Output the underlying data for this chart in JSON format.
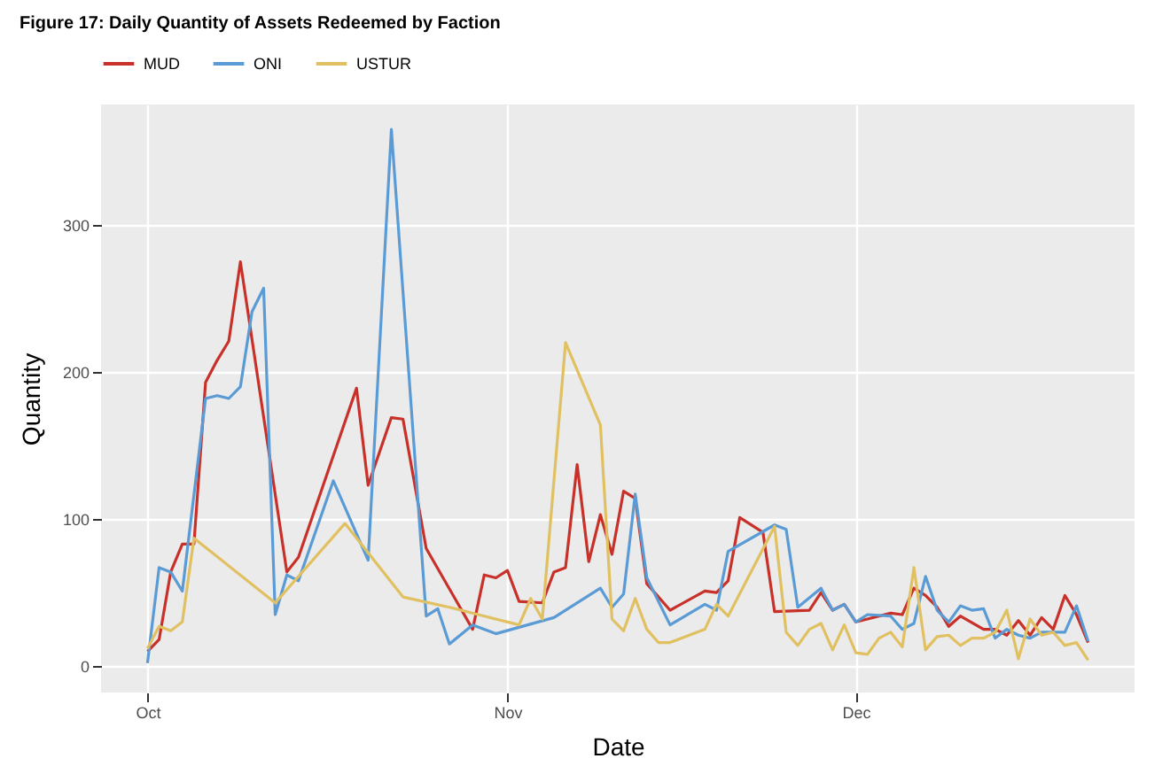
{
  "chart_data": {
    "type": "line",
    "title": "Figure 17: Daily Quantity of Assets Redeemed by Faction",
    "xlabel": "Date",
    "ylabel": "Quantity",
    "xlim": [
      "--09-27",
      "--12-25"
    ],
    "xticks": [
      {
        "value": "--10-01",
        "label": "Oct"
      },
      {
        "value": "--11-01",
        "label": "Nov"
      },
      {
        "value": "--12-01",
        "label": "Dec"
      }
    ],
    "ylim": [
      -18,
      382
    ],
    "yticks": [
      0,
      100,
      200,
      300
    ],
    "grid": true,
    "legend": "top left",
    "line_style": "solid",
    "series": [
      {
        "name": "MUD",
        "color": "#c8312a",
        "x": [
          "--10-01",
          "--10-02",
          "--10-03",
          "--10-04",
          "--10-05",
          "--10-06",
          "--10-07",
          "--10-08",
          "--10-09",
          "--10-13",
          "--10-14",
          "--10-19",
          "--10-20",
          "--10-22",
          "--10-23",
          "--10-25",
          "--10-29",
          "--10-30",
          "--10-31",
          "--11-01",
          "--11-02",
          "--11-04",
          "--11-05",
          "--11-06",
          "--11-07",
          "--11-08",
          "--11-09",
          "--11-10",
          "--11-11",
          "--11-12",
          "--11-13",
          "--11-15",
          "--11-18",
          "--11-19",
          "--11-20",
          "--11-21",
          "--11-23",
          "--11-24",
          "--11-27",
          "--11-28",
          "--11-29",
          "--11-30",
          "--12-01",
          "--12-02",
          "--12-04",
          "--12-05",
          "--12-06",
          "--12-07",
          "--12-08",
          "--12-09",
          "--12-10",
          "--12-12",
          "--12-13",
          "--12-14",
          "--12-15",
          "--12-16",
          "--12-17",
          "--12-18",
          "--12-19",
          "--12-20",
          "--12-21"
        ],
        "values": [
          10,
          18,
          64,
          83,
          83,
          193,
          208,
          221,
          275,
          64,
          74,
          189,
          123,
          169,
          168,
          80,
          25,
          62,
          60,
          65,
          44,
          43,
          64,
          67,
          137,
          71,
          103,
          76,
          119,
          114,
          56,
          38,
          51,
          50,
          58,
          101,
          91,
          37,
          38,
          50,
          38,
          42,
          30,
          32,
          36,
          35,
          53,
          48,
          40,
          27,
          34,
          25,
          25,
          21,
          31,
          21,
          33,
          25,
          48,
          35,
          16
        ]
      },
      {
        "name": "ONI",
        "color": "#5b9bd5",
        "x": [
          "--10-01",
          "--10-02",
          "--10-03",
          "--10-04",
          "--10-06",
          "--10-07",
          "--10-08",
          "--10-09",
          "--10-10",
          "--10-11",
          "--10-12",
          "--10-13",
          "--10-14",
          "--10-17",
          "--10-20",
          "--10-22",
          "--10-25",
          "--10-26",
          "--10-27",
          "--10-29",
          "--10-31",
          "--11-05",
          "--11-09",
          "--11-10",
          "--11-11",
          "--11-12",
          "--11-13",
          "--11-15",
          "--11-18",
          "--11-19",
          "--11-20",
          "--11-24",
          "--11-25",
          "--11-26",
          "--11-28",
          "--11-29",
          "--11-30",
          "--12-01",
          "--12-02",
          "--12-04",
          "--12-05",
          "--12-06",
          "--12-07",
          "--12-08",
          "--12-09",
          "--12-10",
          "--12-11",
          "--12-12",
          "--12-13",
          "--12-14",
          "--12-15",
          "--12-16",
          "--12-17",
          "--12-18",
          "--12-19",
          "--12-20",
          "--12-21"
        ],
        "values": [
          2,
          67,
          64,
          51,
          182,
          184,
          182,
          190,
          241,
          257,
          35,
          62,
          58,
          126,
          72,
          365,
          34,
          39,
          15,
          28,
          22,
          33,
          53,
          40,
          49,
          117,
          60,
          28,
          42,
          38,
          78,
          96,
          93,
          40,
          53,
          38,
          42,
          30,
          35,
          34,
          25,
          29,
          61,
          38,
          30,
          41,
          38,
          39,
          19,
          25,
          21,
          19,
          23,
          23,
          23,
          41,
          17
        ]
      },
      {
        "name": "USTUR",
        "color": "#e0c060",
        "x": [
          "--10-01",
          "--10-02",
          "--10-03",
          "--10-04",
          "--10-05",
          "--10-12",
          "--10-18",
          "--10-23",
          "--10-27",
          "--10-30",
          "--11-02",
          "--11-03",
          "--11-04",
          "--11-06",
          "--11-09",
          "--11-10",
          "--11-11",
          "--11-12",
          "--11-13",
          "--11-14",
          "--11-15",
          "--11-18",
          "--11-19",
          "--11-20",
          "--11-24",
          "--11-25",
          "--11-26",
          "--11-27",
          "--11-28",
          "--11-29",
          "--11-30",
          "--12-01",
          "--12-02",
          "--12-03",
          "--12-04",
          "--12-05",
          "--12-06",
          "--12-07",
          "--12-08",
          "--12-09",
          "--12-10",
          "--12-11",
          "--12-12",
          "--12-13",
          "--12-14",
          "--12-15",
          "--12-16",
          "--12-17",
          "--12-18",
          "--12-19",
          "--12-20",
          "--12-21"
        ],
        "values": [
          12,
          27,
          24,
          30,
          87,
          43,
          97,
          47,
          40,
          34,
          28,
          46,
          32,
          220,
          164,
          32,
          24,
          46,
          25,
          16,
          16,
          25,
          42,
          34,
          95,
          23,
          14,
          25,
          29,
          11,
          28,
          9,
          8,
          19,
          23,
          13,
          67,
          11,
          20,
          21,
          14,
          19,
          19,
          23,
          38,
          5,
          32,
          21,
          23,
          14,
          16,
          4
        ]
      }
    ]
  }
}
